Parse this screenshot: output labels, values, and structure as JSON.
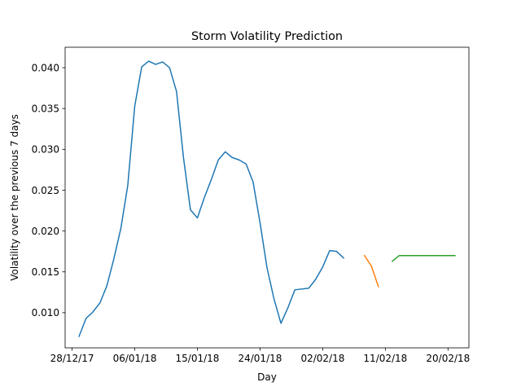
{
  "chart_data": {
    "type": "line",
    "title": "Storm Volatility Prediction",
    "xlabel": "Day",
    "ylabel": "Volatility over the previous 7 days",
    "xlim": [
      "2017-12-27",
      "2018-02-23"
    ],
    "ylim": [
      0.0057,
      0.0425
    ],
    "x_ticks": [
      {
        "date": "2017-12-28",
        "label": "28/12/17"
      },
      {
        "date": "2018-01-06",
        "label": "06/01/18"
      },
      {
        "date": "2018-01-15",
        "label": "15/01/18"
      },
      {
        "date": "2018-01-24",
        "label": "24/01/18"
      },
      {
        "date": "2018-02-02",
        "label": "02/02/18"
      },
      {
        "date": "2018-02-11",
        "label": "11/02/18"
      },
      {
        "date": "2018-02-20",
        "label": "20/02/18"
      }
    ],
    "y_ticks": [
      {
        "value": 0.01,
        "label": "0.010"
      },
      {
        "value": 0.015,
        "label": "0.015"
      },
      {
        "value": 0.02,
        "label": "0.020"
      },
      {
        "value": 0.025,
        "label": "0.025"
      },
      {
        "value": 0.03,
        "label": "0.030"
      },
      {
        "value": 0.035,
        "label": "0.035"
      },
      {
        "value": 0.04,
        "label": "0.040"
      }
    ],
    "grid": false,
    "legend": false,
    "series": [
      {
        "color": "#1f77b4",
        "points": [
          [
            "2017-12-29",
            0.0071
          ],
          [
            "2017-12-30",
            0.0093
          ],
          [
            "2017-12-31",
            0.0101
          ],
          [
            "2018-01-01",
            0.0112
          ],
          [
            "2018-01-02",
            0.0133
          ],
          [
            "2018-01-03",
            0.0166
          ],
          [
            "2018-01-04",
            0.0203
          ],
          [
            "2018-01-05",
            0.0256
          ],
          [
            "2018-01-06",
            0.0353
          ],
          [
            "2018-01-07",
            0.0401
          ],
          [
            "2018-01-08",
            0.0408
          ],
          [
            "2018-01-09",
            0.0404
          ],
          [
            "2018-01-10",
            0.0407
          ],
          [
            "2018-01-11",
            0.04
          ],
          [
            "2018-01-12",
            0.0371
          ],
          [
            "2018-01-13",
            0.029
          ],
          [
            "2018-01-14",
            0.0226
          ],
          [
            "2018-01-15",
            0.0216
          ],
          [
            "2018-01-16",
            0.0241
          ],
          [
            "2018-01-17",
            0.0263
          ],
          [
            "2018-01-18",
            0.0287
          ],
          [
            "2018-01-19",
            0.0297
          ],
          [
            "2018-01-20",
            0.029
          ],
          [
            "2018-01-21",
            0.0287
          ],
          [
            "2018-01-22",
            0.0282
          ],
          [
            "2018-01-23",
            0.026
          ],
          [
            "2018-01-24",
            0.021
          ],
          [
            "2018-01-25",
            0.0155
          ],
          [
            "2018-01-26",
            0.0117
          ],
          [
            "2018-01-27",
            0.0087
          ],
          [
            "2018-01-28",
            0.0106
          ],
          [
            "2018-01-29",
            0.0128
          ],
          [
            "2018-01-31",
            0.013
          ],
          [
            "2018-02-01",
            0.0141
          ],
          [
            "2018-02-02",
            0.0156
          ],
          [
            "2018-02-03",
            0.0176
          ],
          [
            "2018-02-04",
            0.0175
          ],
          [
            "2018-02-05",
            0.0167
          ]
        ]
      },
      {
        "color": "#ff7f0e",
        "points": [
          [
            "2018-02-08",
            0.017
          ],
          [
            "2018-02-09",
            0.0157
          ],
          [
            "2018-02-10",
            0.0132
          ]
        ]
      },
      {
        "color": "#2ca02c",
        "points": [
          [
            "2018-02-12",
            0.0163
          ],
          [
            "2018-02-13",
            0.017
          ],
          [
            "2018-02-14",
            0.017
          ],
          [
            "2018-02-15",
            0.017
          ],
          [
            "2018-02-16",
            0.017
          ],
          [
            "2018-02-17",
            0.017
          ],
          [
            "2018-02-18",
            0.017
          ],
          [
            "2018-02-19",
            0.017
          ],
          [
            "2018-02-20",
            0.017
          ],
          [
            "2018-02-21",
            0.017
          ]
        ]
      }
    ]
  }
}
